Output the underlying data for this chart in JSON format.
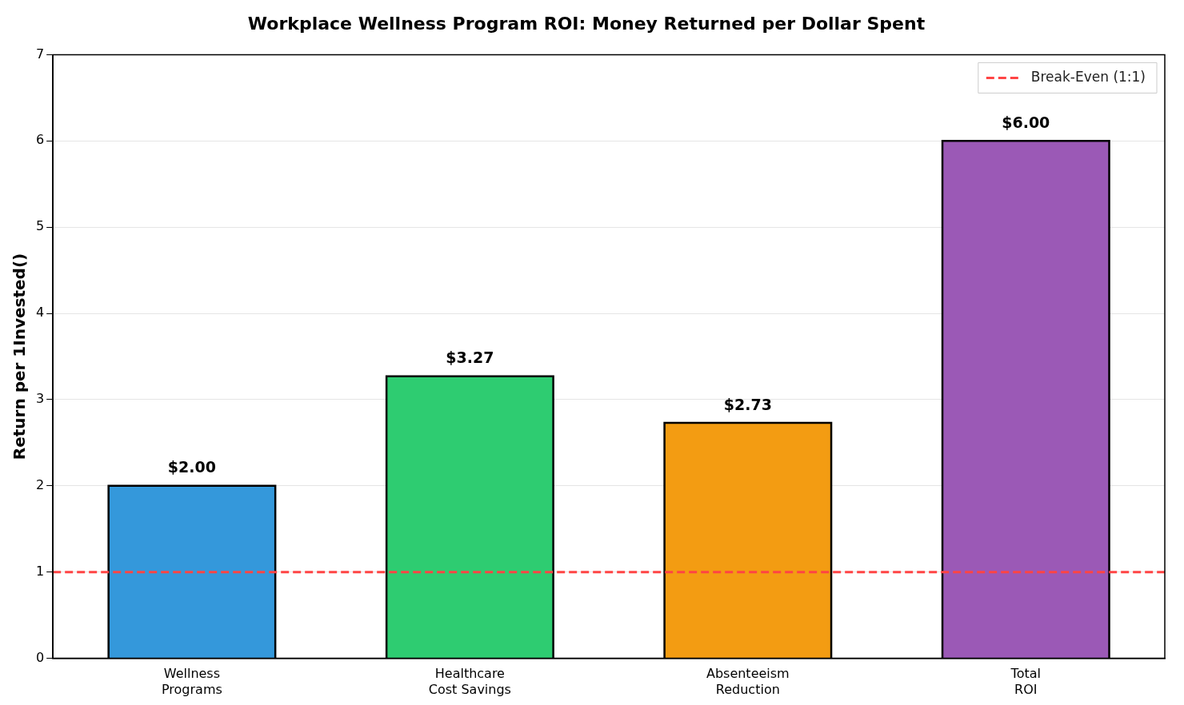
{
  "chart_data": {
    "type": "bar",
    "title": "Workplace Wellness Program ROI: Money Returned per Dollar Spent",
    "ylabel": "Return per 1Invested()",
    "categories": [
      "Wellness\nPrograms",
      "Healthcare\nCost Savings",
      "Absenteeism\nReduction",
      "Total\nROI"
    ],
    "values": [
      2.0,
      3.27,
      2.73,
      6.0
    ],
    "colors": [
      "#3498db",
      "#2ecc71",
      "#f39c12",
      "#9b59b6"
    ],
    "value_labels": [
      "$2.00",
      "$3.27",
      "$2.73",
      "$6.00"
    ],
    "ylim": [
      0,
      7
    ],
    "yticks": [
      0,
      1,
      2,
      3,
      4,
      5,
      6,
      7
    ],
    "grid": "y",
    "legend": "top right",
    "ref_lines": [
      {
        "axis": "y",
        "value": 1,
        "label": "Break-Even (1:1)",
        "color": "#ff4444",
        "line_style": "dashed"
      }
    ]
  }
}
